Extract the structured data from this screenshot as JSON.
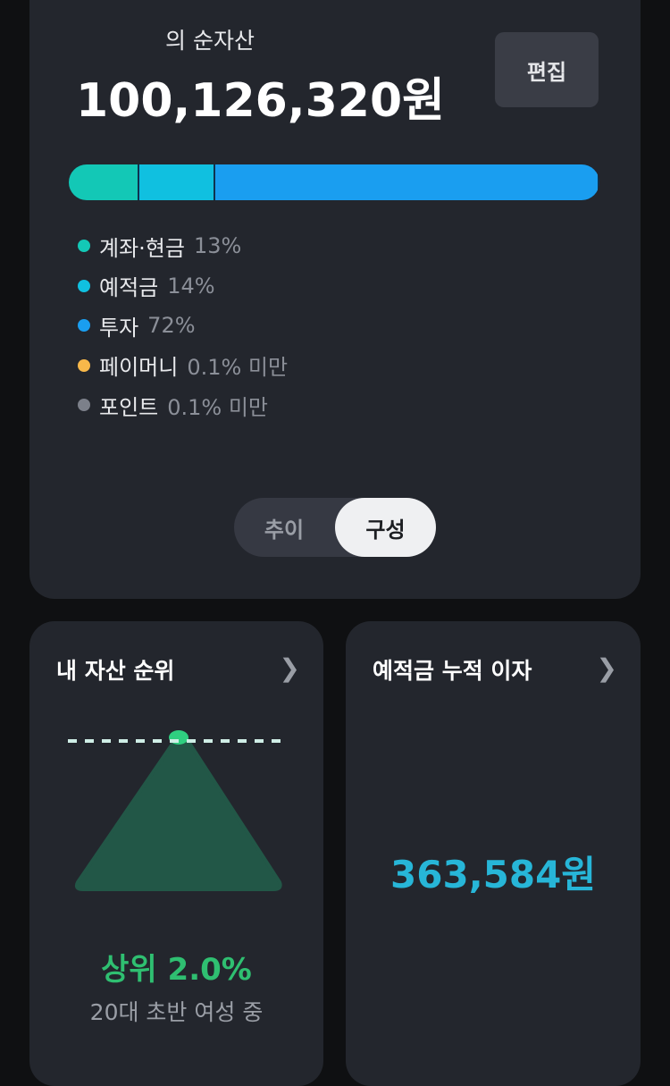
{
  "summary": {
    "subtitle": "의 순자산",
    "total": "100,126,320원",
    "edit_label": "편집"
  },
  "composition": [
    {
      "label": "계좌·현금",
      "pct": "13%",
      "value": 13,
      "color": "#13c8b6"
    },
    {
      "label": "예적금",
      "pct": "14%",
      "value": 14,
      "color": "#10c0e0"
    },
    {
      "label": "투자",
      "pct": "72%",
      "value": 72,
      "color": "#1a9ef0"
    },
    {
      "label": "페이머니",
      "pct": "0.1% 미만",
      "value": 0.1,
      "color": "#f8b84a"
    },
    {
      "label": "포인트",
      "pct": "0.1% 미만",
      "value": 0.1,
      "color": "#7c808a"
    }
  ],
  "toggle": {
    "trend": "추이",
    "composition": "구성",
    "selected": "구성"
  },
  "rank_card": {
    "title": "내 자산 순위",
    "rank": "상위 2.0%",
    "group": "20대 초반 여성 중",
    "icon": "chevron-right"
  },
  "interest_card": {
    "title": "예적금 누적 이자",
    "amount": "363,584원",
    "icon": "chevron-right"
  }
}
